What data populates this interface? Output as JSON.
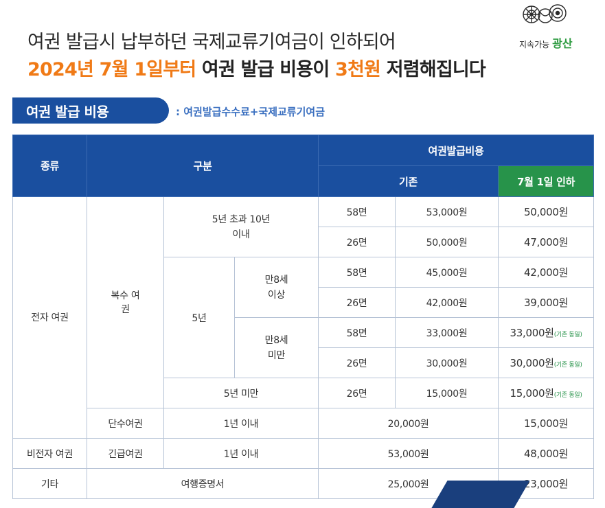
{
  "headline": {
    "line1": "여권 발급시 납부하던 국제교류기여금이 인하되어",
    "line2_highlight1": "2024년 7월 1일부터",
    "line2_mid": " 여권 발급 비용이 ",
    "line2_highlight2": "3천원",
    "line2_end": " 저렴해집니다"
  },
  "logo": {
    "small": "지속가능",
    "big": "광산"
  },
  "section": {
    "title": "여권 발급 비용",
    "subtitle": ": 여권발급수수료+국제교류기여금"
  },
  "table": {
    "headers": {
      "type": "종류",
      "category": "구분",
      "cost": "여권발급비용",
      "existing": "기존",
      "new": "7월 1일 인하"
    },
    "type_electronic": "전자 여권",
    "type_non_electronic": "비전자 여권",
    "type_other": "기타",
    "multi": "복수 여권",
    "single": "단수여권",
    "emergency": "긴급여권",
    "travel_cert": "여행증명서",
    "five_to_ten": "5년 초과 10년 이내",
    "five_years": "5년",
    "age8_over": "만8세 이상",
    "age8_under": "만8세 미만",
    "under_five": "5년 미만",
    "within_one": "1년 이내",
    "same_note": "(기존 동일)",
    "rows": [
      {
        "pages": "58면",
        "existing": "53,000원",
        "new": "50,000원"
      },
      {
        "pages": "26면",
        "existing": "50,000원",
        "new": "47,000원"
      },
      {
        "pages": "58면",
        "existing": "45,000원",
        "new": "42,000원"
      },
      {
        "pages": "26면",
        "existing": "42,000원",
        "new": "39,000원"
      },
      {
        "pages": "58면",
        "existing": "33,000원",
        "new": "33,000원"
      },
      {
        "pages": "26면",
        "existing": "30,000원",
        "new": "30,000원"
      },
      {
        "pages": "26면",
        "existing": "15,000원",
        "new": "15,000원"
      }
    ],
    "single_existing": "20,000원",
    "single_new": "15,000원",
    "emergency_existing": "53,000원",
    "emergency_new": "48,000원",
    "travel_existing": "25,000원",
    "travel_new": "23,000원"
  },
  "colors": {
    "primary": "#1a4f9f",
    "accent": "#f07a16",
    "green": "#27934a"
  }
}
